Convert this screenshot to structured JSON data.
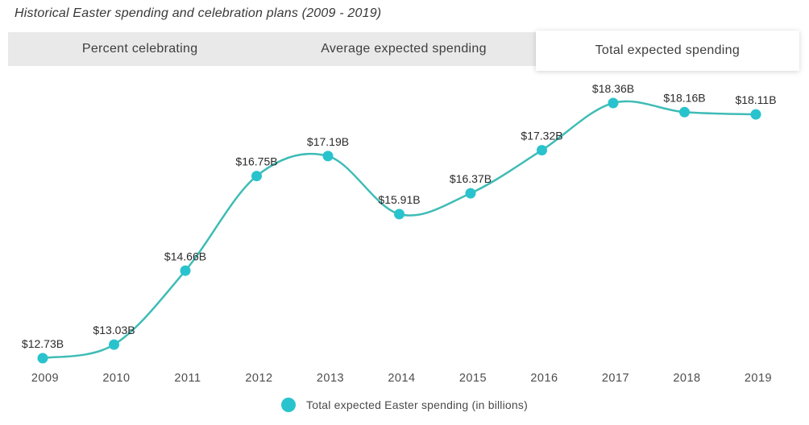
{
  "page": {
    "title": "Historical Easter spending and celebration plans (2009 - 2019)"
  },
  "tabs": {
    "items": [
      {
        "label": "Percent celebrating",
        "active": false
      },
      {
        "label": "Average expected spending",
        "active": false
      },
      {
        "label": "Total expected spending",
        "active": true
      }
    ]
  },
  "colors": {
    "line": "#3fbcb6",
    "point": "#29c3cd",
    "tab_bar_bg": "#e9e9e9",
    "active_tab_bg": "#ffffff"
  },
  "legend": {
    "label": "Total expected Easter spending (in billions)",
    "marker_color": "#29c3cd"
  },
  "chart_data": {
    "type": "line",
    "title": "Historical Easter spending and celebration plans (2009 - 2019)",
    "categories": [
      "2009",
      "2010",
      "2011",
      "2012",
      "2013",
      "2014",
      "2015",
      "2016",
      "2017",
      "2018",
      "2019"
    ],
    "values": [
      12.73,
      13.03,
      14.66,
      16.75,
      17.19,
      15.91,
      16.37,
      17.32,
      18.36,
      18.16,
      18.11
    ],
    "point_labels": [
      "$12.73B",
      "$13.03B",
      "$14.66B",
      "$16.75B",
      "$17.19B",
      "$15.91B",
      "$16.37B",
      "$17.32B",
      "$18.36B",
      "$18.16B",
      "$18.11B"
    ],
    "series_name": "Total expected Easter spending (in billions)",
    "xlabel": "",
    "ylabel": "",
    "ylim": [
      12.2,
      19.0
    ],
    "grid": false,
    "legend_position": "bottom"
  }
}
